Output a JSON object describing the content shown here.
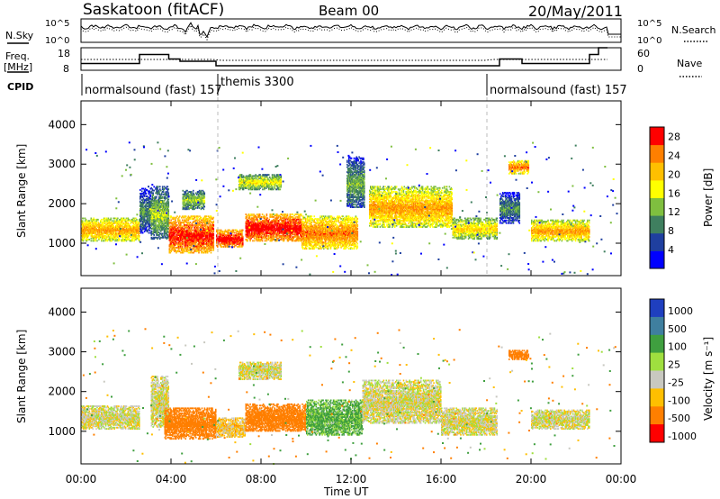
{
  "header": {
    "station": "Saskatoon (fitACF)",
    "beam": "Beam 00",
    "date": "20/May/2011"
  },
  "top_panels": {
    "noise_left_label": "N.Sky",
    "noise_right_label": "N.Search",
    "noise_ticks_left": [
      "10^5",
      "10^0"
    ],
    "noise_ticks_right": [
      "10^5",
      "10^0"
    ],
    "freq_label_line1": "Freq.",
    "freq_label_line2": "[MHz]",
    "freq_ticks": [
      "18",
      "8"
    ],
    "nave_label": "Nave",
    "nave_ticks": [
      "60",
      "0"
    ],
    "cpid_label": "CPID",
    "cpid_segments": [
      {
        "name": "normalsound (fast) 157",
        "start_hour": 0
      },
      {
        "name": "themis 3300",
        "start_hour": 6
      },
      {
        "name": "normalsound (fast) 157",
        "start_hour": 18
      }
    ]
  },
  "chart_data": [
    {
      "type": "heatmap",
      "title": "",
      "xlabel": "Time UT",
      "ylabel": "Slant Range [km]",
      "x_range_hours": [
        0,
        24
      ],
      "y_range_km": [
        180,
        4600
      ],
      "x_ticks": [
        "00:00",
        "04:00",
        "08:00",
        "12:00",
        "16:00",
        "20:00",
        "00:00"
      ],
      "y_ticks": [
        "1000",
        "2000",
        "3000",
        "4000"
      ],
      "colorbar_label": "Power [dB]",
      "colorbar_ticks": [
        "4",
        "8",
        "12",
        "16",
        "20",
        "24",
        "28"
      ],
      "colorbar_range": [
        0,
        30
      ],
      "colors": [
        "#0000ff",
        "#1f3f9f",
        "#3f7f5f",
        "#7fbf3f",
        "#ffff00",
        "#ffbf00",
        "#ff7f00",
        "#ff0000"
      ],
      "bands": [
        {
          "t0": 0.0,
          "t1": 2.6,
          "r0": 1050,
          "r1": 1650,
          "p": 18
        },
        {
          "t0": 2.6,
          "t1": 3.1,
          "r0": 1250,
          "r1": 2400,
          "p": 6
        },
        {
          "t0": 3.1,
          "t1": 3.9,
          "r0": 1100,
          "r1": 2450,
          "p": 10
        },
        {
          "t0": 3.9,
          "t1": 5.9,
          "r0": 750,
          "r1": 1700,
          "p": 24
        },
        {
          "t0": 4.5,
          "t1": 5.5,
          "r0": 1850,
          "r1": 2350,
          "p": 10
        },
        {
          "t0": 6.0,
          "t1": 7.2,
          "r0": 900,
          "r1": 1350,
          "p": 25
        },
        {
          "t0": 7.0,
          "t1": 8.9,
          "r0": 2350,
          "r1": 2750,
          "p": 13
        },
        {
          "t0": 7.3,
          "t1": 9.8,
          "r0": 1050,
          "r1": 1750,
          "p": 25
        },
        {
          "t0": 9.8,
          "t1": 12.3,
          "r0": 850,
          "r1": 1700,
          "p": 20
        },
        {
          "t0": 11.8,
          "t1": 12.6,
          "r0": 1900,
          "r1": 3200,
          "p": 8
        },
        {
          "t0": 12.8,
          "t1": 16.5,
          "r0": 1400,
          "r1": 2450,
          "p": 18
        },
        {
          "t0": 16.5,
          "t1": 18.5,
          "r0": 1100,
          "r1": 1650,
          "p": 15
        },
        {
          "t0": 18.6,
          "t1": 19.5,
          "r0": 1500,
          "r1": 2300,
          "p": 6
        },
        {
          "t0": 19.0,
          "t1": 19.9,
          "r0": 2750,
          "r1": 3100,
          "p": 20
        },
        {
          "t0": 20.0,
          "t1": 22.6,
          "r0": 1050,
          "r1": 1600,
          "p": 18
        }
      ]
    },
    {
      "type": "heatmap",
      "title": "",
      "xlabel": "Time UT",
      "ylabel": "Slant Range [km]",
      "x_range_hours": [
        0,
        24
      ],
      "y_range_km": [
        180,
        4600
      ],
      "x_ticks": [
        "00:00",
        "04:00",
        "08:00",
        "12:00",
        "16:00",
        "20:00",
        "00:00"
      ],
      "y_ticks": [
        "1000",
        "2000",
        "3000",
        "4000"
      ],
      "colorbar_label": "Velocity [m s⁻¹]",
      "colorbar_ticks": [
        "1000",
        "500",
        "100",
        "25",
        "-25",
        "-100",
        "-500",
        "-1000"
      ],
      "colors": [
        "#1f3fbf",
        "#3f7f9f",
        "#3f9f3f",
        "#9fdf3f",
        "#c8c8c0",
        "#ffbf00",
        "#ff7f00",
        "#ff0000"
      ],
      "bands": [
        {
          "t0": 0.0,
          "t1": 2.6,
          "r0": 1050,
          "r1": 1650,
          "v": 0
        },
        {
          "t0": 3.1,
          "t1": 3.9,
          "r0": 1100,
          "r1": 2400,
          "v": 0
        },
        {
          "t0": 3.7,
          "t1": 6.0,
          "r0": 800,
          "r1": 1600,
          "v": -300
        },
        {
          "t0": 6.0,
          "t1": 7.3,
          "r0": 850,
          "r1": 1350,
          "v": -50
        },
        {
          "t0": 7.0,
          "t1": 8.9,
          "r0": 2300,
          "r1": 2750,
          "v": 0
        },
        {
          "t0": 7.3,
          "t1": 10.0,
          "r0": 1000,
          "r1": 1700,
          "v": -300
        },
        {
          "t0": 10.0,
          "t1": 12.5,
          "r0": 900,
          "r1": 1800,
          "v": 80
        },
        {
          "t0": 12.5,
          "t1": 16.0,
          "r0": 1200,
          "r1": 2300,
          "v": 0
        },
        {
          "t0": 16.0,
          "t1": 18.5,
          "r0": 900,
          "r1": 1600,
          "v": 0
        },
        {
          "t0": 19.0,
          "t1": 19.9,
          "r0": 2800,
          "r1": 3050,
          "v": -200
        },
        {
          "t0": 20.0,
          "t1": 22.6,
          "r0": 1050,
          "r1": 1550,
          "v": 0
        }
      ]
    }
  ]
}
